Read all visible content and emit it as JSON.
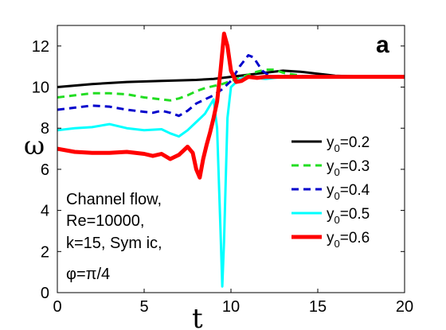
{
  "chart_data": {
    "type": "line",
    "xlabel": "t",
    "ylabel": "ω",
    "xlim": [
      0,
      20
    ],
    "ylim": [
      0,
      13
    ],
    "xticks": [
      0,
      5,
      10,
      15,
      20
    ],
    "yticks": [
      0,
      2,
      4,
      6,
      8,
      10,
      12
    ],
    "grid": false,
    "legend_position": "right",
    "panel_label": "a",
    "annotation_lines": [
      "Channel flow,",
      "Re=10000,",
      "k=15, Sym ic,",
      "φ=π/4"
    ],
    "series": [
      {
        "name_main": "y",
        "name_sub": "0",
        "name_rest": "=0.2",
        "color": "#000000",
        "dash": "solid",
        "x": [
          0,
          2,
          4,
          6,
          8,
          9,
          10,
          11,
          12,
          13,
          14,
          15,
          16,
          18,
          20
        ],
        "y": [
          10.0,
          10.15,
          10.25,
          10.3,
          10.35,
          10.4,
          10.5,
          10.6,
          10.7,
          10.8,
          10.75,
          10.65,
          10.55,
          10.5,
          10.5
        ]
      },
      {
        "name_main": "y",
        "name_sub": "0",
        "name_rest": "=0.3",
        "color": "#22dd22",
        "dash": "dashed",
        "x": [
          0,
          1,
          2,
          3,
          4,
          5,
          6,
          6.5,
          7,
          7.5,
          8,
          8.5,
          9,
          9.5,
          10,
          10.5,
          11,
          11.5,
          12,
          12.5,
          13,
          14,
          15,
          20
        ],
        "y": [
          9.5,
          9.6,
          9.7,
          9.7,
          9.65,
          9.5,
          9.4,
          9.35,
          9.45,
          9.6,
          9.8,
          9.95,
          10.05,
          10.15,
          10.3,
          10.45,
          10.6,
          10.75,
          10.85,
          10.85,
          10.7,
          10.55,
          10.5,
          10.5
        ]
      },
      {
        "name_main": "y",
        "name_sub": "0",
        "name_rest": "=0.4",
        "color": "#0000cc",
        "dash": "dashed",
        "x": [
          0,
          1,
          2,
          3,
          4,
          5,
          5.5,
          6,
          6.5,
          7,
          7.5,
          8,
          8.5,
          9,
          9.5,
          10,
          10.5,
          11,
          11.3,
          11.8,
          12.3,
          13,
          14,
          20
        ],
        "y": [
          8.9,
          9.0,
          9.1,
          9.05,
          8.9,
          8.8,
          8.75,
          8.85,
          8.75,
          8.6,
          8.85,
          9.2,
          9.4,
          9.6,
          9.9,
          10.3,
          11.0,
          11.55,
          11.45,
          10.8,
          10.5,
          10.55,
          10.5,
          10.5
        ]
      },
      {
        "name_main": "y",
        "name_sub": "0",
        "name_rest": "=0.5",
        "color": "#00ffff",
        "dash": "solid",
        "x": [
          0,
          1,
          2,
          3,
          4,
          5,
          6,
          6.5,
          7,
          7.5,
          8,
          8.5,
          9,
          9.2,
          9.4,
          9.5,
          9.6,
          9.8,
          10,
          10.5,
          11,
          12,
          13,
          14,
          20
        ],
        "y": [
          7.9,
          8.0,
          8.05,
          8.2,
          8.0,
          7.9,
          7.95,
          7.75,
          7.6,
          7.9,
          8.3,
          8.7,
          9.4,
          8.0,
          3.0,
          0.3,
          2.5,
          8.5,
          10.0,
          10.4,
          10.5,
          10.4,
          10.5,
          10.5,
          10.5
        ]
      },
      {
        "name_main": "y",
        "name_sub": "0",
        "name_rest": "=0.6",
        "color": "#ff0000",
        "dash": "solid",
        "x": [
          0,
          1,
          2,
          3,
          4,
          5,
          5.5,
          6,
          6.5,
          7,
          7.5,
          7.8,
          8.0,
          8.2,
          8.4,
          8.6,
          8.8,
          9.0,
          9.2,
          9.4,
          9.6,
          9.8,
          10.0,
          10.3,
          10.6,
          11,
          11.5,
          12,
          13,
          14,
          20
        ],
        "y": [
          7.0,
          6.85,
          6.8,
          6.8,
          6.85,
          6.75,
          6.65,
          6.75,
          6.5,
          6.7,
          7.1,
          6.8,
          6.0,
          5.6,
          6.5,
          7.2,
          7.8,
          8.5,
          9.3,
          10.8,
          12.6,
          12.0,
          10.8,
          10.25,
          10.3,
          10.5,
          10.45,
          10.5,
          10.5,
          10.5,
          10.5
        ]
      }
    ]
  }
}
